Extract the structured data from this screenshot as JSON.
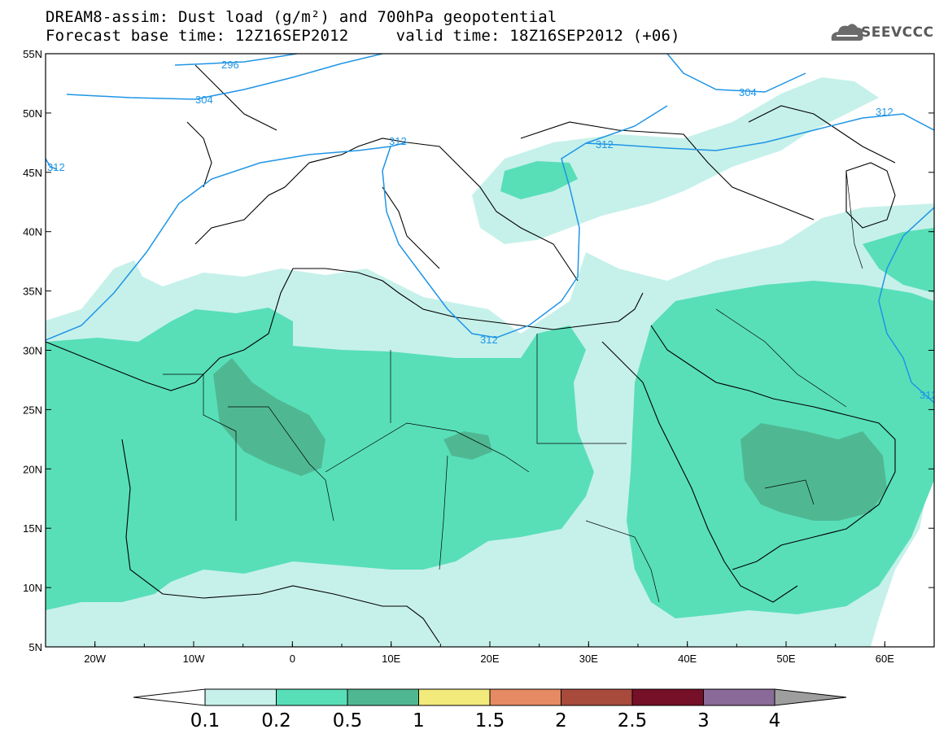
{
  "title": {
    "line1": "DREAM8-assim: Dust load (g/m²) and 700hPa geopotential",
    "line2": "Forecast base time: 12Z16SEP2012     valid time: 18Z16SEP2012 (+06)"
  },
  "logo": {
    "text": "SEEVCCC",
    "icon": "cloud-logo-icon"
  },
  "map": {
    "lon_range": [
      -25,
      65
    ],
    "lat_range": [
      5,
      55
    ],
    "lon_ticks": [
      "20W",
      "10W",
      "0",
      "10E",
      "20E",
      "30E",
      "40E",
      "50E",
      "60E"
    ],
    "lat_ticks": [
      "55N",
      "50N",
      "45N",
      "40N",
      "35N",
      "30N",
      "25N",
      "20N",
      "15N",
      "10N",
      "5N"
    ]
  },
  "contours": {
    "labels": [
      "296",
      "304",
      "304",
      "312",
      "312",
      "312",
      "312",
      "312",
      "312"
    ]
  },
  "colorbar": {
    "labels": [
      "0.1",
      "0.2",
      "0.5",
      "1",
      "1.5",
      "2",
      "2.5",
      "3",
      "4"
    ],
    "colors": [
      "#c6f1ea",
      "#58dfb8",
      "#4fb893",
      "#f3ea7c",
      "#e58a62",
      "#a84a3c",
      "#760f28",
      "#8a6a98",
      "#9e9e9e"
    ]
  },
  "colors": {
    "dust_0_1": "#c6f1ea",
    "dust_0_2": "#58dfb8",
    "dust_0_5": "#4fb893",
    "contour": "#1f95e6"
  }
}
